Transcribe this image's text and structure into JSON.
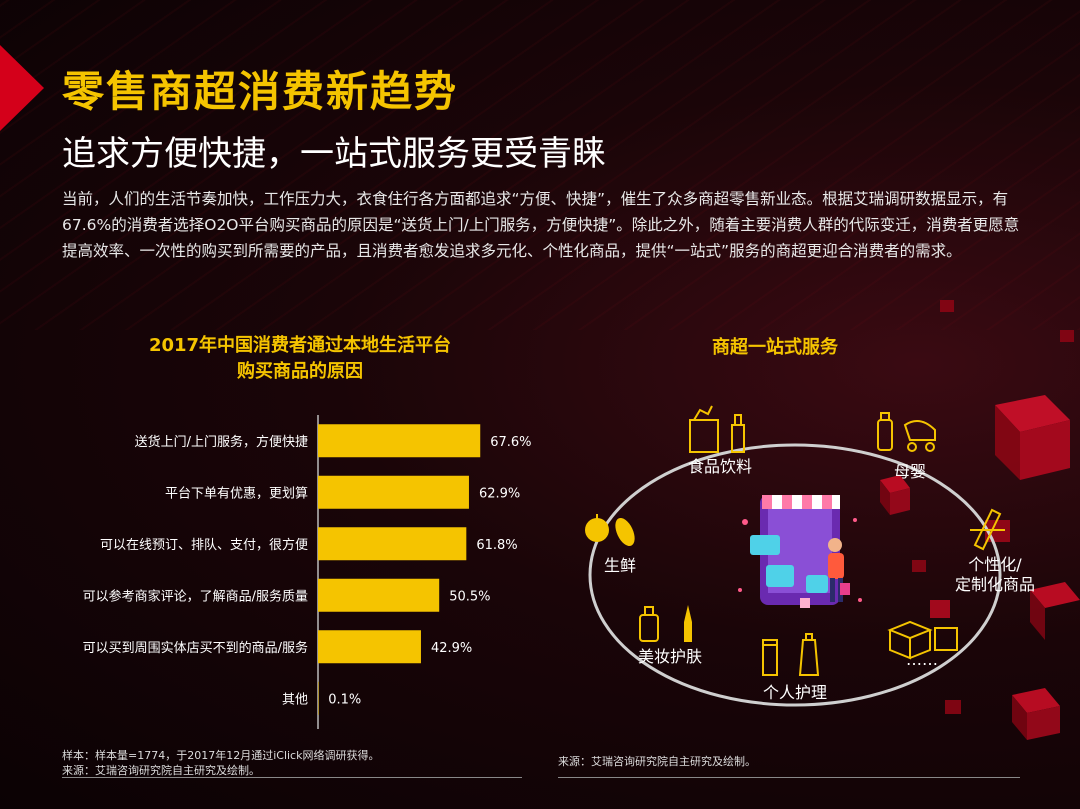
{
  "header": {
    "title": "零售商超消费新趋势",
    "subtitle": "追求方便快捷，一站式服务更受青睐",
    "paragraph": "当前，人们的生活节奏加快，工作压力大，衣食住行各方面都追求“方便、快捷”，催生了众多商超零售新业态。根据艾瑞调研数据显示，有67.6%的消费者选择O2O平台购买商品的原因是“送货上门/上门服务，方便快捷”。除此之外，随着主要消费人群的代际变迁，消费者更愿意提高效率、一次性的购买到所需要的产品，且消费者愈发追求多元化、个性化商品，提供“一站式”服务的商超更迎合消费者的需求。"
  },
  "chart_data": {
    "type": "bar",
    "orientation": "horizontal",
    "title_line1": "2017年中国消费者通过本地生活平台",
    "title_line2": "购买商品的原因",
    "categories": [
      "送货上门/上门服务，方便快捷",
      "平台下单有优惠，更划算",
      "可以在线预订、排队、支付，很方便",
      "可以参考商家评论，了解商品/服务质量",
      "可以买到周围实体店买不到的商品/服务",
      "其他"
    ],
    "values": [
      67.6,
      62.9,
      61.8,
      50.5,
      42.9,
      0.1
    ],
    "value_labels": [
      "67.6%",
      "62.9%",
      "61.8%",
      "50.5%",
      "42.9%",
      "0.1%"
    ],
    "xlim": [
      0,
      100
    ],
    "bar_color": "#f5c400",
    "grid": false,
    "legend": "none"
  },
  "right_panel": {
    "title": "商超一站式服务",
    "services": [
      "食品饮料",
      "母婴",
      "生鲜",
      "个性化/\n定制化商品",
      "美妆护肤",
      "个人护理",
      "……"
    ]
  },
  "notes": {
    "left_line1": "样本：样本量=1774，于2017年12月通过iClick网络调研获得。",
    "left_line2": "来源：艾瑞咨询研究院自主研究及绘制。",
    "right": "来源：艾瑞咨询研究院自主研究及绘制。"
  },
  "colors": {
    "accent": "#f5c400",
    "brand_red": "#d4001a",
    "background": "#140407"
  },
  "icons": [
    "grocery-bag-icon",
    "baby-bottle-icon",
    "stroller-icon",
    "apple-icon",
    "eggplant-icon",
    "pencil-icon",
    "perfume-icon",
    "lipstick-icon",
    "lotion-icon",
    "boxes-icon",
    "shop-phone-icon"
  ]
}
